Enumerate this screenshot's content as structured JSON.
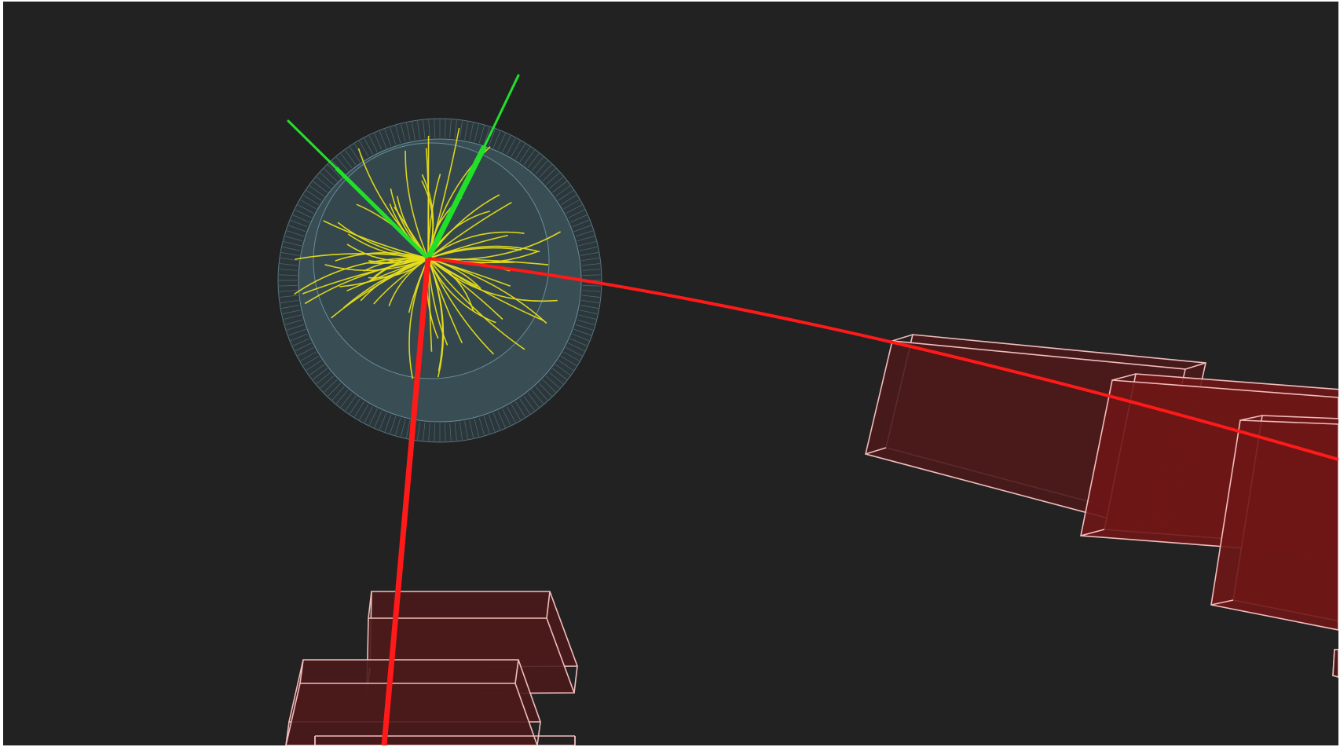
{
  "scene": {
    "description_type": "particle-collision-event-display",
    "colors": {
      "background": "#222222",
      "tracks": "#e6dd1a",
      "muon_tracks": "#ff1a1a",
      "electron_tracks": "#22e02a",
      "muon_chamber_fill": "#4a1a1a",
      "muon_chamber_fill_bright": "#6e1616",
      "muon_chamber_edge": "#f2bcbc",
      "detector_barrel": "#8fb8c6"
    },
    "counts": {
      "charged_tracks": 70,
      "muons": 2,
      "electrons": 2,
      "muon_chambers": 8
    }
  }
}
